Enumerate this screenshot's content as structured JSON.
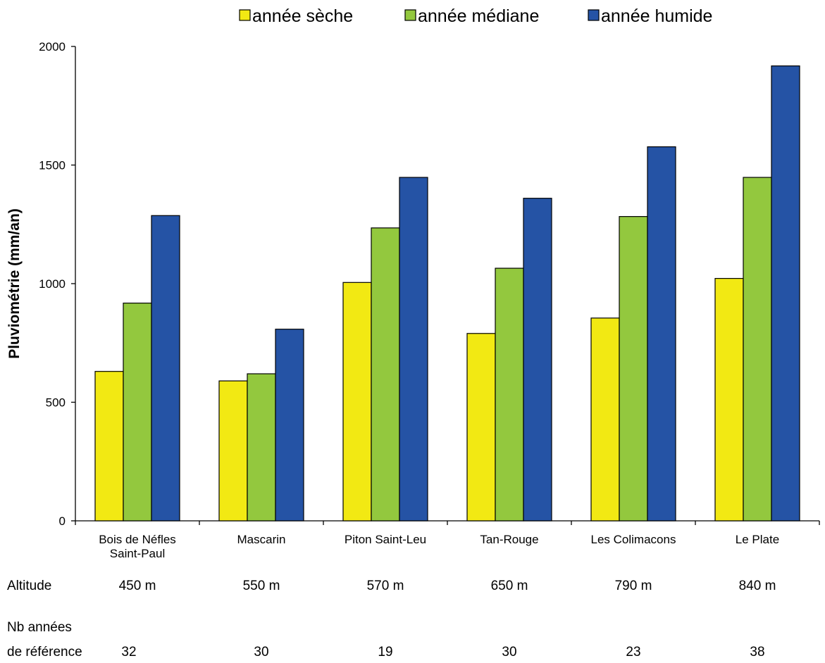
{
  "chart_data": {
    "type": "bar",
    "title": "",
    "xlabel": "",
    "ylabel": "Pluviométrie (mm/an)",
    "ylim": [
      0,
      2000
    ],
    "yticks": [
      0,
      500,
      1000,
      1500,
      2000
    ],
    "grid": false,
    "legend_position": "top",
    "categories": [
      [
        "Bois de Néfles",
        "Saint-Paul"
      ],
      [
        "Mascarin"
      ],
      [
        "Piton Saint-Leu"
      ],
      [
        "Tan-Rouge"
      ],
      [
        "Les Colimacons"
      ],
      [
        "Le Plate"
      ]
    ],
    "series": [
      {
        "name": "année sèche",
        "color": "#f2e913",
        "values": [
          630,
          590,
          1005,
          790,
          855,
          1022
        ]
      },
      {
        "name": "année médiane",
        "color": "#93c83e",
        "values": [
          918,
          620,
          1235,
          1065,
          1283,
          1448
        ]
      },
      {
        "name": "année humide",
        "color": "#2553a5",
        "values": [
          1287,
          808,
          1448,
          1360,
          1577,
          1918
        ]
      }
    ]
  },
  "table": {
    "altitude": {
      "label": "Altitude",
      "values": [
        "450 m",
        "550 m",
        "570 m",
        "650 m",
        "790 m",
        "840 m"
      ]
    },
    "years": {
      "label_line1": "Nb années",
      "label_line2": "de référence",
      "values": [
        "32",
        "30",
        "19",
        "30",
        "23",
        "38"
      ]
    }
  }
}
